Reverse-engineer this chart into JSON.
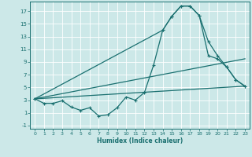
{
  "xlabel": "Humidex (Indice chaleur)",
  "background_color": "#cce8e8",
  "grid_color": "#ffffff",
  "line_color": "#1a7070",
  "xlim": [
    -0.5,
    23.5
  ],
  "ylim": [
    -1.5,
    18.5
  ],
  "xticks": [
    0,
    1,
    2,
    3,
    4,
    5,
    6,
    7,
    8,
    9,
    10,
    11,
    12,
    13,
    14,
    15,
    16,
    17,
    18,
    19,
    20,
    21,
    22,
    23
  ],
  "yticks": [
    -1,
    1,
    3,
    5,
    7,
    9,
    11,
    13,
    15,
    17
  ],
  "line1_x": [
    0,
    1,
    2,
    3,
    4,
    5,
    6,
    7,
    8,
    9,
    10,
    11,
    12,
    13,
    14,
    15,
    16,
    17,
    18,
    19,
    20,
    21,
    22,
    23
  ],
  "line1_y": [
    3.2,
    2.5,
    2.5,
    2.9,
    1.9,
    1.4,
    1.8,
    0.5,
    0.7,
    1.8,
    3.5,
    3.0,
    4.2,
    8.5,
    14.0,
    16.2,
    17.8,
    17.8,
    16.3,
    12.2,
    10.0,
    8.2,
    6.2,
    5.2
  ],
  "line2_x": [
    0,
    23
  ],
  "line2_y": [
    3.2,
    5.2
  ],
  "line3_x": [
    0,
    23
  ],
  "line3_y": [
    3.2,
    9.5
  ],
  "line4_x": [
    0,
    14,
    15,
    16,
    17,
    18,
    19,
    20,
    21,
    22,
    23
  ],
  "line4_y": [
    3.2,
    14.0,
    16.2,
    17.8,
    17.8,
    16.3,
    10.0,
    9.5,
    8.2,
    6.2,
    5.2
  ]
}
